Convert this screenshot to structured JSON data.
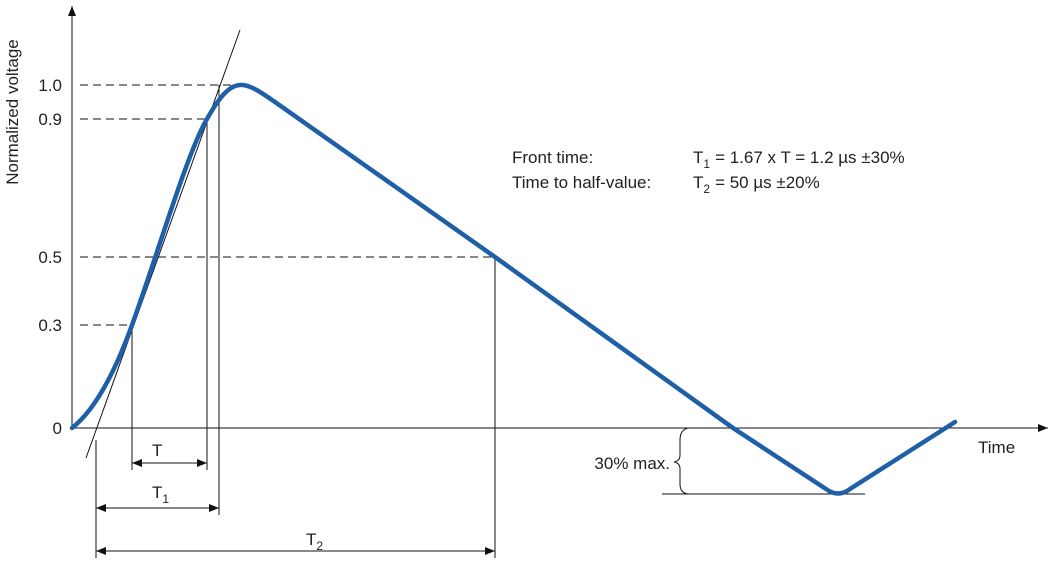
{
  "axes": {
    "y_label": "Normalized voltage",
    "x_label": "Time",
    "y_ticks": [
      "1.0",
      "0.9",
      "0.5",
      "0.3",
      "0"
    ]
  },
  "legend": {
    "front_time_label": "Front time:",
    "front_time_symbol": "T",
    "front_time_subscript": "1",
    "front_time_value": "= 1.67 x T = 1.2 µs ±30%",
    "half_value_label": "Time to half-value:",
    "half_value_symbol": "T",
    "half_value_subscript": "2",
    "half_value_value": "= 50 µs ±20%"
  },
  "intervals": {
    "t": "T",
    "t1_symbol": "T",
    "t1_subscript": "1",
    "t2_symbol": "T",
    "t2_subscript": "2"
  },
  "undershoot_label": "30% max."
}
